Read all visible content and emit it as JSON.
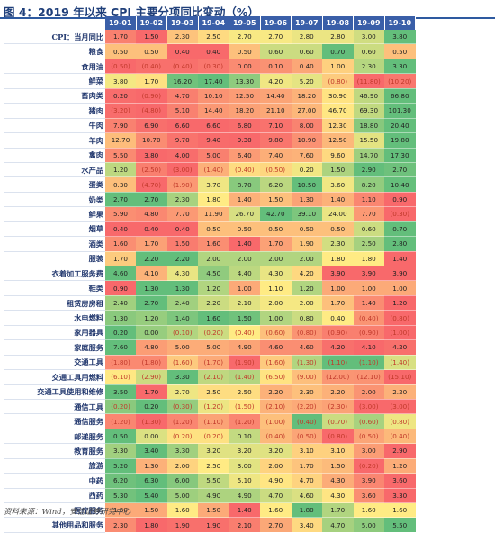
{
  "title": "图 4：2019 年以来 CPI 主要分项同比变动（%）",
  "source": "资料来源：Wind，安信证券研究中心",
  "table": {
    "columns": [
      "19-01",
      "19-02",
      "19-03",
      "19-04",
      "19-05",
      "19-06",
      "19-07",
      "19-08",
      "19-09",
      "19-10"
    ],
    "rows": [
      {
        "label": "CPI：当月同比",
        "values": [
          "1.70",
          "1.50",
          "2.30",
          "2.50",
          "2.70",
          "2.70",
          "2.80",
          "2.80",
          "3.00",
          "3.80"
        ]
      },
      {
        "label": "粮食",
        "values": [
          "0.50",
          "0.50",
          "0.40",
          "0.40",
          "0.50",
          "0.60",
          "0.60",
          "0.70",
          "0.60",
          "0.50"
        ]
      },
      {
        "label": "食用油",
        "values": [
          "(0.50)",
          "(0.40)",
          "(0.40)",
          "(0.30)",
          "0.00",
          "0.10",
          "0.40",
          "1.00",
          "2.30",
          "3.30"
        ]
      },
      {
        "label": "鲜菜",
        "values": [
          "3.80",
          "1.70",
          "16.20",
          "17.40",
          "13.30",
          "4.20",
          "5.20",
          "(0.80)",
          "(11.80)",
          "(10.20)"
        ]
      },
      {
        "label": "畜肉类",
        "values": [
          "0.20",
          "(0.90)",
          "4.70",
          "10.10",
          "12.50",
          "14.40",
          "18.20",
          "30.90",
          "46.90",
          "66.80"
        ]
      },
      {
        "label": "猪肉",
        "values": [
          "(3.20)",
          "(4.80)",
          "5.10",
          "14.40",
          "18.20",
          "21.10",
          "27.00",
          "46.70",
          "69.30",
          "101.30"
        ]
      },
      {
        "label": "牛肉",
        "values": [
          "7.90",
          "6.90",
          "6.60",
          "6.60",
          "6.80",
          "7.10",
          "8.00",
          "12.30",
          "18.80",
          "20.40"
        ]
      },
      {
        "label": "羊肉",
        "values": [
          "12.70",
          "10.70",
          "9.70",
          "9.40",
          "9.30",
          "9.80",
          "10.90",
          "12.50",
          "15.50",
          "19.80"
        ]
      },
      {
        "label": "禽肉",
        "values": [
          "5.50",
          "3.80",
          "4.00",
          "5.00",
          "6.40",
          "7.40",
          "7.60",
          "9.60",
          "14.70",
          "17.30"
        ]
      },
      {
        "label": "水产品",
        "values": [
          "1.20",
          "(2.50)",
          "(3.00)",
          "(1.40)",
          "(0.40)",
          "(0.50)",
          "0.20",
          "1.50",
          "2.90",
          "2.70"
        ]
      },
      {
        "label": "蛋类",
        "values": [
          "0.30",
          "(4.70)",
          "(1.90)",
          "3.70",
          "8.70",
          "6.20",
          "10.50",
          "3.60",
          "8.20",
          "10.40"
        ]
      },
      {
        "label": "奶类",
        "values": [
          "2.70",
          "2.70",
          "2.30",
          "1.80",
          "1.40",
          "1.50",
          "1.30",
          "1.40",
          "1.10",
          "0.90"
        ]
      },
      {
        "label": "鲜果",
        "values": [
          "5.90",
          "4.80",
          "7.70",
          "11.90",
          "26.70",
          "42.70",
          "39.10",
          "24.00",
          "7.70",
          "(0.30)"
        ]
      },
      {
        "label": "烟草",
        "values": [
          "0.40",
          "0.40",
          "0.40",
          "0.50",
          "0.50",
          "0.50",
          "0.50",
          "0.50",
          "0.60",
          "0.70"
        ]
      },
      {
        "label": "酒类",
        "values": [
          "1.60",
          "1.70",
          "1.50",
          "1.60",
          "1.40",
          "1.70",
          "1.90",
          "2.30",
          "2.50",
          "2.80"
        ]
      },
      {
        "label": "服装",
        "values": [
          "1.70",
          "2.20",
          "2.20",
          "2.00",
          "2.00",
          "2.00",
          "2.00",
          "1.80",
          "1.80",
          "1.40"
        ]
      },
      {
        "label": "衣着加工服务费",
        "values": [
          "4.60",
          "4.10",
          "4.30",
          "4.50",
          "4.40",
          "4.30",
          "4.20",
          "3.90",
          "3.90",
          "3.90"
        ]
      },
      {
        "label": "鞋类",
        "values": [
          "0.90",
          "1.30",
          "1.30",
          "1.20",
          "1.00",
          "1.10",
          "1.20",
          "1.00",
          "1.00",
          "1.00"
        ]
      },
      {
        "label": "租赁房房租",
        "values": [
          "2.40",
          "2.70",
          "2.40",
          "2.20",
          "2.10",
          "2.00",
          "2.00",
          "1.70",
          "1.40",
          "1.20"
        ]
      },
      {
        "label": "水电燃料",
        "values": [
          "1.30",
          "1.20",
          "1.40",
          "1.60",
          "1.50",
          "1.00",
          "0.80",
          "0.40",
          "(0.40)",
          "(0.80)"
        ]
      },
      {
        "label": "家用器具",
        "values": [
          "0.20",
          "0.00",
          "(0.10)",
          "(0.20)",
          "(0.40)",
          "(0.60)",
          "(0.80)",
          "(0.90)",
          "(0.90)",
          "(1.00)"
        ]
      },
      {
        "label": "家庭服务",
        "values": [
          "7.60",
          "4.80",
          "5.00",
          "5.00",
          "4.90",
          "4.60",
          "4.60",
          "4.20",
          "4.10",
          "4.20"
        ]
      },
      {
        "label": "交通工具",
        "values": [
          "(1.80)",
          "(1.80)",
          "(1.60)",
          "(1.70)",
          "(1.90)",
          "(1.60)",
          "(1.30)",
          "(1.10)",
          "(1.10)",
          "(1.40)"
        ]
      },
      {
        "label": "交通工具用燃料",
        "values": [
          "(6.10)",
          "(2.90)",
          "3.30",
          "(2.10)",
          "(1.40)",
          "(6.50)",
          "(9.00)",
          "(12.00)",
          "(12.10)",
          "(15.10)"
        ]
      },
      {
        "label": "交通工具使用和维修",
        "values": [
          "3.50",
          "1.70",
          "2.70",
          "2.50",
          "2.50",
          "2.20",
          "2.30",
          "2.20",
          "2.00",
          "2.20"
        ]
      },
      {
        "label": "通信工具",
        "values": [
          "(0.20)",
          "0.20",
          "(0.30)",
          "(1.20)",
          "(1.50)",
          "(2.10)",
          "(2.20)",
          "(2.30)",
          "(3.00)",
          "(3.00)"
        ]
      },
      {
        "label": "通信服务",
        "values": [
          "(1.20)",
          "(1.30)",
          "(1.20)",
          "(1.10)",
          "(1.20)",
          "(1.00)",
          "(0.40)",
          "(0.70)",
          "(0.60)",
          "(0.80)"
        ]
      },
      {
        "label": "邮递服务",
        "values": [
          "0.50",
          "0.00",
          "(0.20)",
          "(0.20)",
          "0.10",
          "(0.40)",
          "(0.50)",
          "(0.80)",
          "(0.50)",
          "(0.40)"
        ]
      },
      {
        "label": "教育服务",
        "values": [
          "3.30",
          "3.40",
          "3.30",
          "3.20",
          "3.20",
          "3.20",
          "3.10",
          "3.10",
          "3.00",
          "2.90"
        ]
      },
      {
        "label": "旅游",
        "values": [
          "5.20",
          "1.30",
          "2.00",
          "2.50",
          "3.00",
          "2.00",
          "1.70",
          "1.50",
          "(0.20)",
          "1.20"
        ]
      },
      {
        "label": "中药",
        "values": [
          "6.20",
          "6.30",
          "6.00",
          "5.50",
          "5.10",
          "4.90",
          "4.70",
          "4.30",
          "3.90",
          "3.60"
        ]
      },
      {
        "label": "西药",
        "values": [
          "5.30",
          "5.40",
          "5.00",
          "4.90",
          "4.90",
          "4.70",
          "4.60",
          "4.30",
          "3.60",
          "3.30"
        ]
      },
      {
        "label": "医疗服务",
        "values": [
          "1.50",
          "1.50",
          "1.60",
          "1.50",
          "1.40",
          "1.60",
          "1.80",
          "1.70",
          "1.60",
          "1.60"
        ]
      },
      {
        "label": "其他用品和服务",
        "values": [
          "2.30",
          "1.80",
          "1.90",
          "1.90",
          "2.10",
          "2.70",
          "3.40",
          "4.70",
          "5.00",
          "5.50"
        ]
      }
    ]
  }
}
